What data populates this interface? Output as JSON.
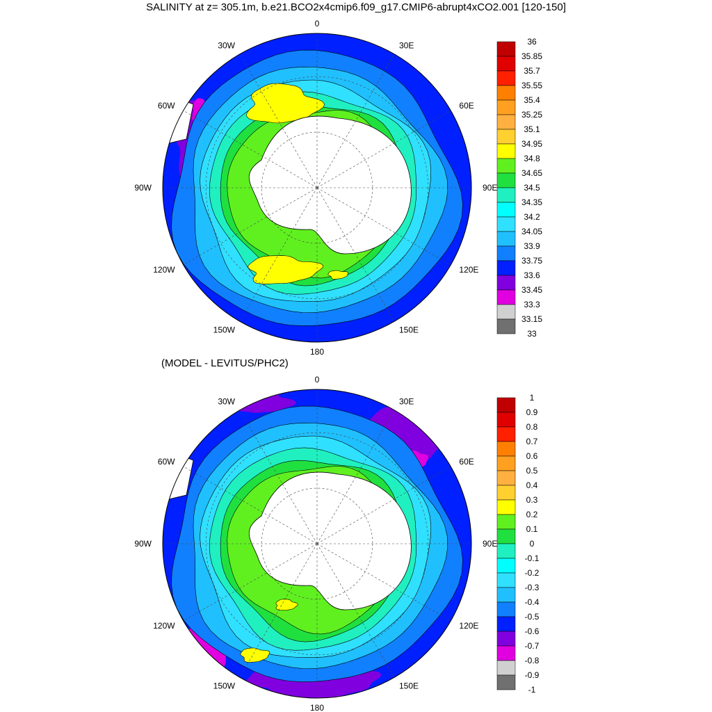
{
  "title": "SALINITY at z= 305.1m, b.e21.BCO2x4cmip6.f09_g17.CMIP6-abrupt4xCO2.001 [120-150]",
  "panels": [
    {
      "id": "salinity",
      "subtitle": "",
      "lon_labels": [
        "0",
        "30E",
        "60E",
        "90E",
        "120E",
        "150E",
        "180",
        "150W",
        "120W",
        "90W",
        "60W",
        "30W"
      ],
      "colorbar": {
        "labels": [
          "36",
          "35.85",
          "35.7",
          "35.55",
          "35.4",
          "35.25",
          "35.1",
          "34.95",
          "34.8",
          "34.65",
          "34.5",
          "34.35",
          "34.2",
          "34.05",
          "33.9",
          "33.75",
          "33.6",
          "33.45",
          "33.3",
          "33.15",
          "33"
        ],
        "colors": [
          "#c00000",
          "#e00000",
          "#ff2000",
          "#ff8000",
          "#ffa020",
          "#ffb040",
          "#ffd030",
          "#ffff00",
          "#60f020",
          "#20e040",
          "#20f0c0",
          "#00ffff",
          "#30e0ff",
          "#20c0ff",
          "#1080ff",
          "#0020ff",
          "#8000e0",
          "#e000e0",
          "#d0d0d0",
          "#707070"
        ]
      }
    },
    {
      "id": "difference",
      "subtitle": "(MODEL - LEVITUS/PHC2)",
      "lon_labels": [
        "0",
        "30E",
        "60E",
        "90E",
        "120E",
        "150E",
        "180",
        "150W",
        "120W",
        "90W",
        "60W",
        "30W"
      ],
      "colorbar": {
        "labels": [
          "1",
          "0.9",
          "0.8",
          "0.7",
          "0.6",
          "0.5",
          "0.4",
          "0.3",
          "0.2",
          "0.1",
          "0",
          "-0.1",
          "-0.2",
          "-0.3",
          "-0.4",
          "-0.5",
          "-0.6",
          "-0.7",
          "-0.8",
          "-0.9",
          "-1"
        ],
        "colors": [
          "#c00000",
          "#e00000",
          "#ff2000",
          "#ff8000",
          "#ffa020",
          "#ffb040",
          "#ffd030",
          "#ffff00",
          "#60f020",
          "#20e040",
          "#20f0c0",
          "#00ffff",
          "#30e0ff",
          "#20c0ff",
          "#1080ff",
          "#0020ff",
          "#8000e0",
          "#e000e0",
          "#d0d0d0",
          "#707070"
        ]
      }
    }
  ],
  "map_colors": {
    "outer": "#0020ff",
    "ring2": "#1080ff",
    "ring3": "#20c0ff",
    "ring4": "#30e0ff",
    "ring5": "#20f0c0",
    "ring6": "#20e040",
    "core": "#60f020",
    "yellow": "#ffff00",
    "purple": "#8000e0",
    "magenta": "#e000e0",
    "land": "#ffffff"
  }
}
